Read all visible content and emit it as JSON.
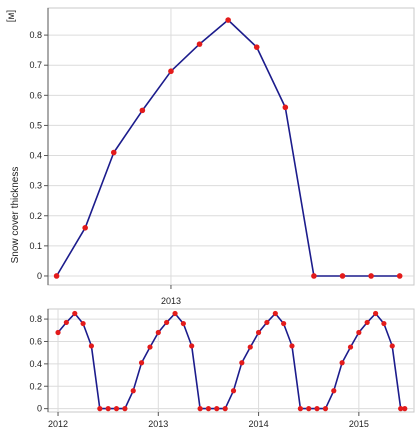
{
  "chart_data": [
    {
      "type": "line",
      "title": "",
      "unit_label": "[м]",
      "xlabel": "",
      "ylabel": "Snow cover thickness",
      "x": [
        0,
        1,
        2,
        3,
        4,
        5,
        6,
        7,
        8,
        9,
        10,
        11,
        12
      ],
      "series": [
        {
          "values": [
            0.0,
            0.16,
            0.41,
            0.55,
            0.68,
            0.77,
            0.85,
            0.76,
            0.56,
            0.0,
            0.0,
            0.0,
            0.0
          ]
        }
      ],
      "xlim": [
        -0.3,
        12.5
      ],
      "ylim": [
        -0.03,
        0.89
      ],
      "yticks": [
        0,
        0.1,
        0.2,
        0.3,
        0.4,
        0.5,
        0.6,
        0.7,
        0.8
      ],
      "xtick_labels": [
        {
          "label": "2013",
          "x": 4
        }
      ],
      "grid": true,
      "colors": {
        "line": "#1c1c8c",
        "marker": "#e31b1b",
        "grid": "#dcdcdc",
        "axis": "#555555"
      }
    },
    {
      "type": "line",
      "title": "",
      "xlabel": "",
      "ylabel": "",
      "x": [
        2012.0,
        2012.083,
        2012.167,
        2012.25,
        2012.333,
        2012.417,
        2012.5,
        2012.583,
        2012.667,
        2012.75,
        2012.833,
        2012.917,
        2013.0,
        2013.083,
        2013.167,
        2013.25,
        2013.333,
        2013.417,
        2013.5,
        2013.583,
        2013.667,
        2013.75,
        2013.833,
        2013.917,
        2014.0,
        2014.083,
        2014.167,
        2014.25,
        2014.333,
        2014.417,
        2014.5,
        2014.583,
        2014.667,
        2014.75,
        2014.833,
        2014.917,
        2015.0,
        2015.083,
        2015.167,
        2015.25,
        2015.333,
        2015.417,
        2015.458
      ],
      "series": [
        {
          "values": [
            0.68,
            0.77,
            0.85,
            0.76,
            0.56,
            0.0,
            0.0,
            0.0,
            0.0,
            0.16,
            0.41,
            0.55,
            0.68,
            0.77,
            0.85,
            0.76,
            0.56,
            0.0,
            0.0,
            0.0,
            0.0,
            0.16,
            0.41,
            0.55,
            0.68,
            0.77,
            0.85,
            0.76,
            0.56,
            0.0,
            0.0,
            0.0,
            0.0,
            0.16,
            0.41,
            0.55,
            0.68,
            0.77,
            0.85,
            0.76,
            0.56,
            0.0,
            0.0
          ]
        }
      ],
      "xlim": [
        2011.9,
        2015.55
      ],
      "ylim": [
        -0.03,
        0.89
      ],
      "yticks": [
        0,
        0.2,
        0.4,
        0.6,
        0.8
      ],
      "xtick_labels": [
        {
          "label": "2012",
          "x": 2012
        },
        {
          "label": "2013",
          "x": 2013
        },
        {
          "label": "2014",
          "x": 2014
        },
        {
          "label": "2015",
          "x": 2015
        }
      ],
      "grid": true,
      "colors": {
        "line": "#1c1c8c",
        "marker": "#e31b1b",
        "grid": "#dcdcdc",
        "axis": "#555555"
      }
    }
  ]
}
